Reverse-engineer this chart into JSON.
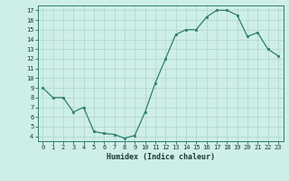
{
  "x": [
    0,
    1,
    2,
    3,
    4,
    5,
    6,
    7,
    8,
    9,
    10,
    11,
    12,
    13,
    14,
    15,
    16,
    17,
    18,
    19,
    20,
    21,
    22,
    23
  ],
  "y": [
    9,
    8,
    8,
    6.5,
    7,
    4.5,
    4.3,
    4.2,
    3.8,
    4.1,
    6.5,
    9.5,
    12,
    14.5,
    15,
    15,
    16.3,
    17,
    17,
    16.5,
    14.3,
    14.7,
    13,
    12.3
  ],
  "xlabel": "Humidex (Indice chaleur)",
  "xlim": [
    -0.5,
    23.5
  ],
  "ylim": [
    3.5,
    17.5
  ],
  "yticks": [
    4,
    5,
    6,
    7,
    8,
    9,
    10,
    11,
    12,
    13,
    14,
    15,
    16,
    17
  ],
  "xticks": [
    0,
    1,
    2,
    3,
    4,
    5,
    6,
    7,
    8,
    9,
    10,
    11,
    12,
    13,
    14,
    15,
    16,
    17,
    18,
    19,
    20,
    21,
    22,
    23
  ],
  "line_color": "#2e7d6e",
  "marker": "s",
  "marker_size": 1.8,
  "bg_color": "#ceeee8",
  "grid_color": "#aed4cc",
  "tick_fontsize": 5.0,
  "xlabel_fontsize": 6.0
}
